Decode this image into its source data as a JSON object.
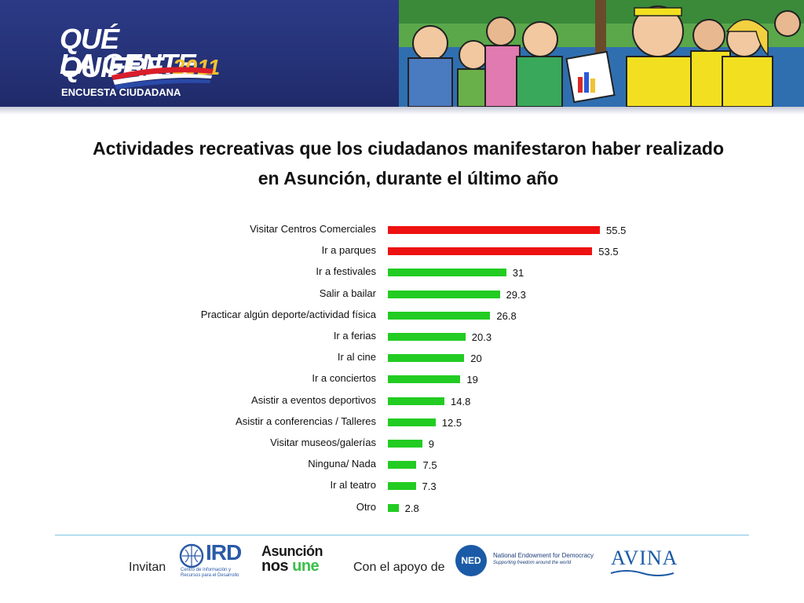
{
  "header": {
    "logo_line1": "QUÉ QUIERE",
    "logo_line2": "LA GENTE",
    "logo_year": "2011",
    "logo_subtitle": "ENCUESTA CIUDADANA"
  },
  "colors": {
    "banner": "#253277",
    "highlight_bar": "#ee1111",
    "normal_bar": "#22cc22",
    "footer_line": "#7ec3e0"
  },
  "chart_data": {
    "type": "bar",
    "orientation": "horizontal",
    "title": "Actividades recreativas que los ciudadanos manifestaron haber realizado en Asunción, durante el último año",
    "title_line1": "Actividades recreativas que los ciudadanos manifestaron haber realizado",
    "title_line2": "en Asunción, durante el último año",
    "categories": [
      "Visitar Centros Comerciales",
      "Ir a parques",
      "Ir a festivales",
      "Salir a bailar",
      "Practicar algún deporte/actividad física",
      "Ir a ferias",
      "Ir al cine",
      "Ir a conciertos",
      "Asistir a eventos deportivos",
      "Asistir a conferencias / Talleres",
      "Visitar museos/galerías",
      "Ninguna/ Nada",
      "Ir al teatro",
      "Otro"
    ],
    "values": [
      55.5,
      53.5,
      31,
      29.3,
      26.8,
      20.3,
      20,
      19,
      14.8,
      12.5,
      9,
      7.5,
      7.3,
      2.8
    ],
    "value_labels": [
      "55.5",
      "53.5",
      "31",
      "29.3",
      "26.8",
      "20.3",
      "20",
      "19",
      "14.8",
      "12.5",
      "9",
      "7.5",
      "7.3",
      "2.8"
    ],
    "highlighted": [
      true,
      true,
      false,
      false,
      false,
      false,
      false,
      false,
      false,
      false,
      false,
      false,
      false,
      false
    ],
    "xlabel": "",
    "ylabel": "",
    "xlim": [
      0,
      60
    ],
    "grid": false,
    "legend": "none"
  },
  "footer": {
    "invitan": "Invitan",
    "ird": "IRD",
    "ird_small": "Centro de Información y Recursos para el Desarrollo",
    "asuncion_line1": "Asunción",
    "asuncion_nos": "nos ",
    "asuncion_une": "une",
    "apoyo": "Con el apoyo de",
    "ned_abbr": "NED",
    "ned_name": "National Endowment for Democracy",
    "ned_tagline": "Supporting freedom around the world",
    "avina": "AVINA"
  }
}
